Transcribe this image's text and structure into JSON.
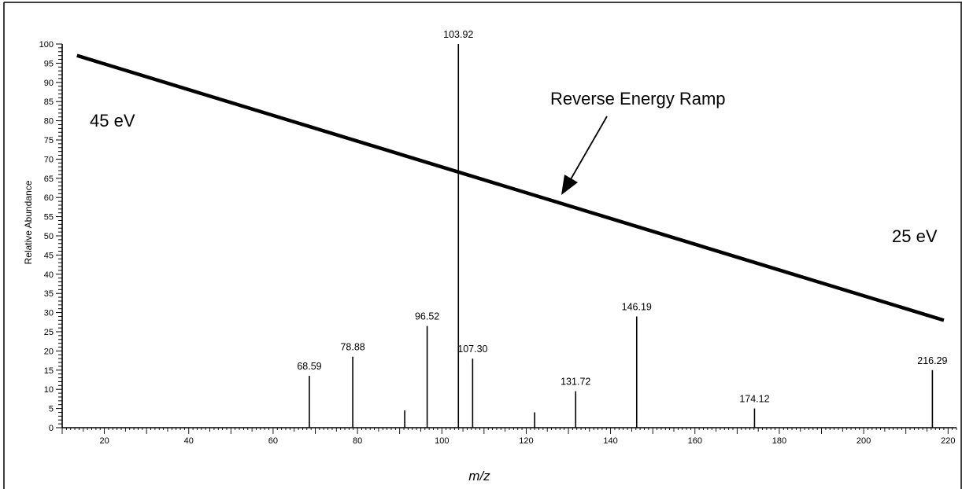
{
  "chart_data": {
    "type": "bar",
    "xlabel": "m/z",
    "ylabel": "Relative Abundance",
    "xlim": [
      10,
      222
    ],
    "ylim": [
      0,
      100
    ],
    "x_ticks": [
      20,
      40,
      60,
      80,
      100,
      120,
      140,
      160,
      180,
      200,
      220
    ],
    "y_ticks": [
      0,
      5,
      10,
      15,
      20,
      25,
      30,
      35,
      40,
      45,
      50,
      55,
      60,
      65,
      70,
      75,
      80,
      85,
      90,
      95,
      100
    ],
    "peaks": [
      {
        "x": 68.59,
        "y": 13.5,
        "label": "68.59"
      },
      {
        "x": 78.88,
        "y": 18.5,
        "label": "78.88"
      },
      {
        "x": 91.2,
        "y": 4.5,
        "label": ""
      },
      {
        "x": 96.52,
        "y": 26.5,
        "label": "96.52"
      },
      {
        "x": 103.92,
        "y": 100,
        "label": "103.92"
      },
      {
        "x": 107.3,
        "y": 18.0,
        "label": "107.30"
      },
      {
        "x": 122.0,
        "y": 4.0,
        "label": ""
      },
      {
        "x": 131.72,
        "y": 9.5,
        "label": "131.72"
      },
      {
        "x": 146.19,
        "y": 29.0,
        "label": "146.19"
      },
      {
        "x": 174.12,
        "y": 5.0,
        "label": "174.12"
      },
      {
        "x": 216.29,
        "y": 15.0,
        "label": "216.29"
      }
    ],
    "ramp_line": {
      "x": [
        13.5,
        219
      ],
      "y": [
        97,
        28
      ]
    },
    "annotations": {
      "high_energy": "45 eV",
      "low_energy": "25 eV",
      "ramp_label": "Reverse Energy Ramp"
    }
  }
}
